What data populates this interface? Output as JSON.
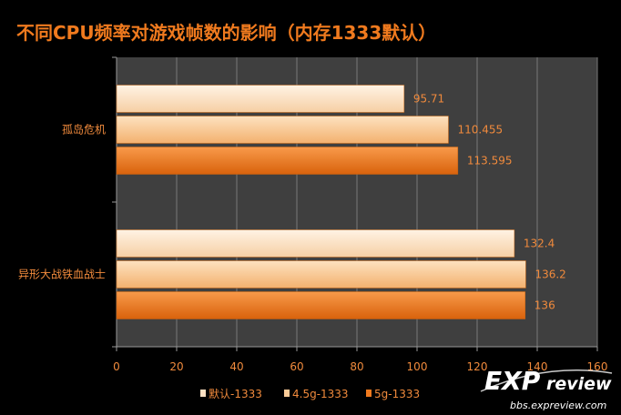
{
  "chart_data": {
    "type": "bar",
    "orientation": "horizontal",
    "title": "不同CPU频率对游戏帧数的影响（内存1333默认）",
    "categories": [
      "孤岛危机",
      "异形大战铁血战士"
    ],
    "series": [
      {
        "name": "默认-1333",
        "values": [
          95.71,
          132.4
        ],
        "data_labels": [
          "95.71",
          "132.4"
        ]
      },
      {
        "name": "4.5g-1333",
        "values": [
          110.455,
          136.2
        ],
        "data_labels": [
          "110.455",
          "136.2"
        ]
      },
      {
        "name": "5g-1333",
        "values": [
          113.595,
          136
        ],
        "data_labels": [
          "113.595",
          "136"
        ]
      }
    ],
    "xlim": [
      0,
      160
    ],
    "xticks": [
      0,
      20,
      40,
      60,
      80,
      100,
      120,
      140,
      160
    ],
    "grid": true,
    "legend": "bottom",
    "xlabel": "",
    "ylabel": ""
  },
  "colors": {
    "background": "#000000",
    "plot_area": "#3f3f3f",
    "gridline": "#7a7a7a",
    "title": "#f07a1e",
    "text": "#f08a3c",
    "series": [
      "#fde1c3",
      "#fbcb98",
      "#f07a1e"
    ]
  },
  "watermark": {
    "logo": "EXPreview",
    "url": "bbs.expreview.com"
  }
}
